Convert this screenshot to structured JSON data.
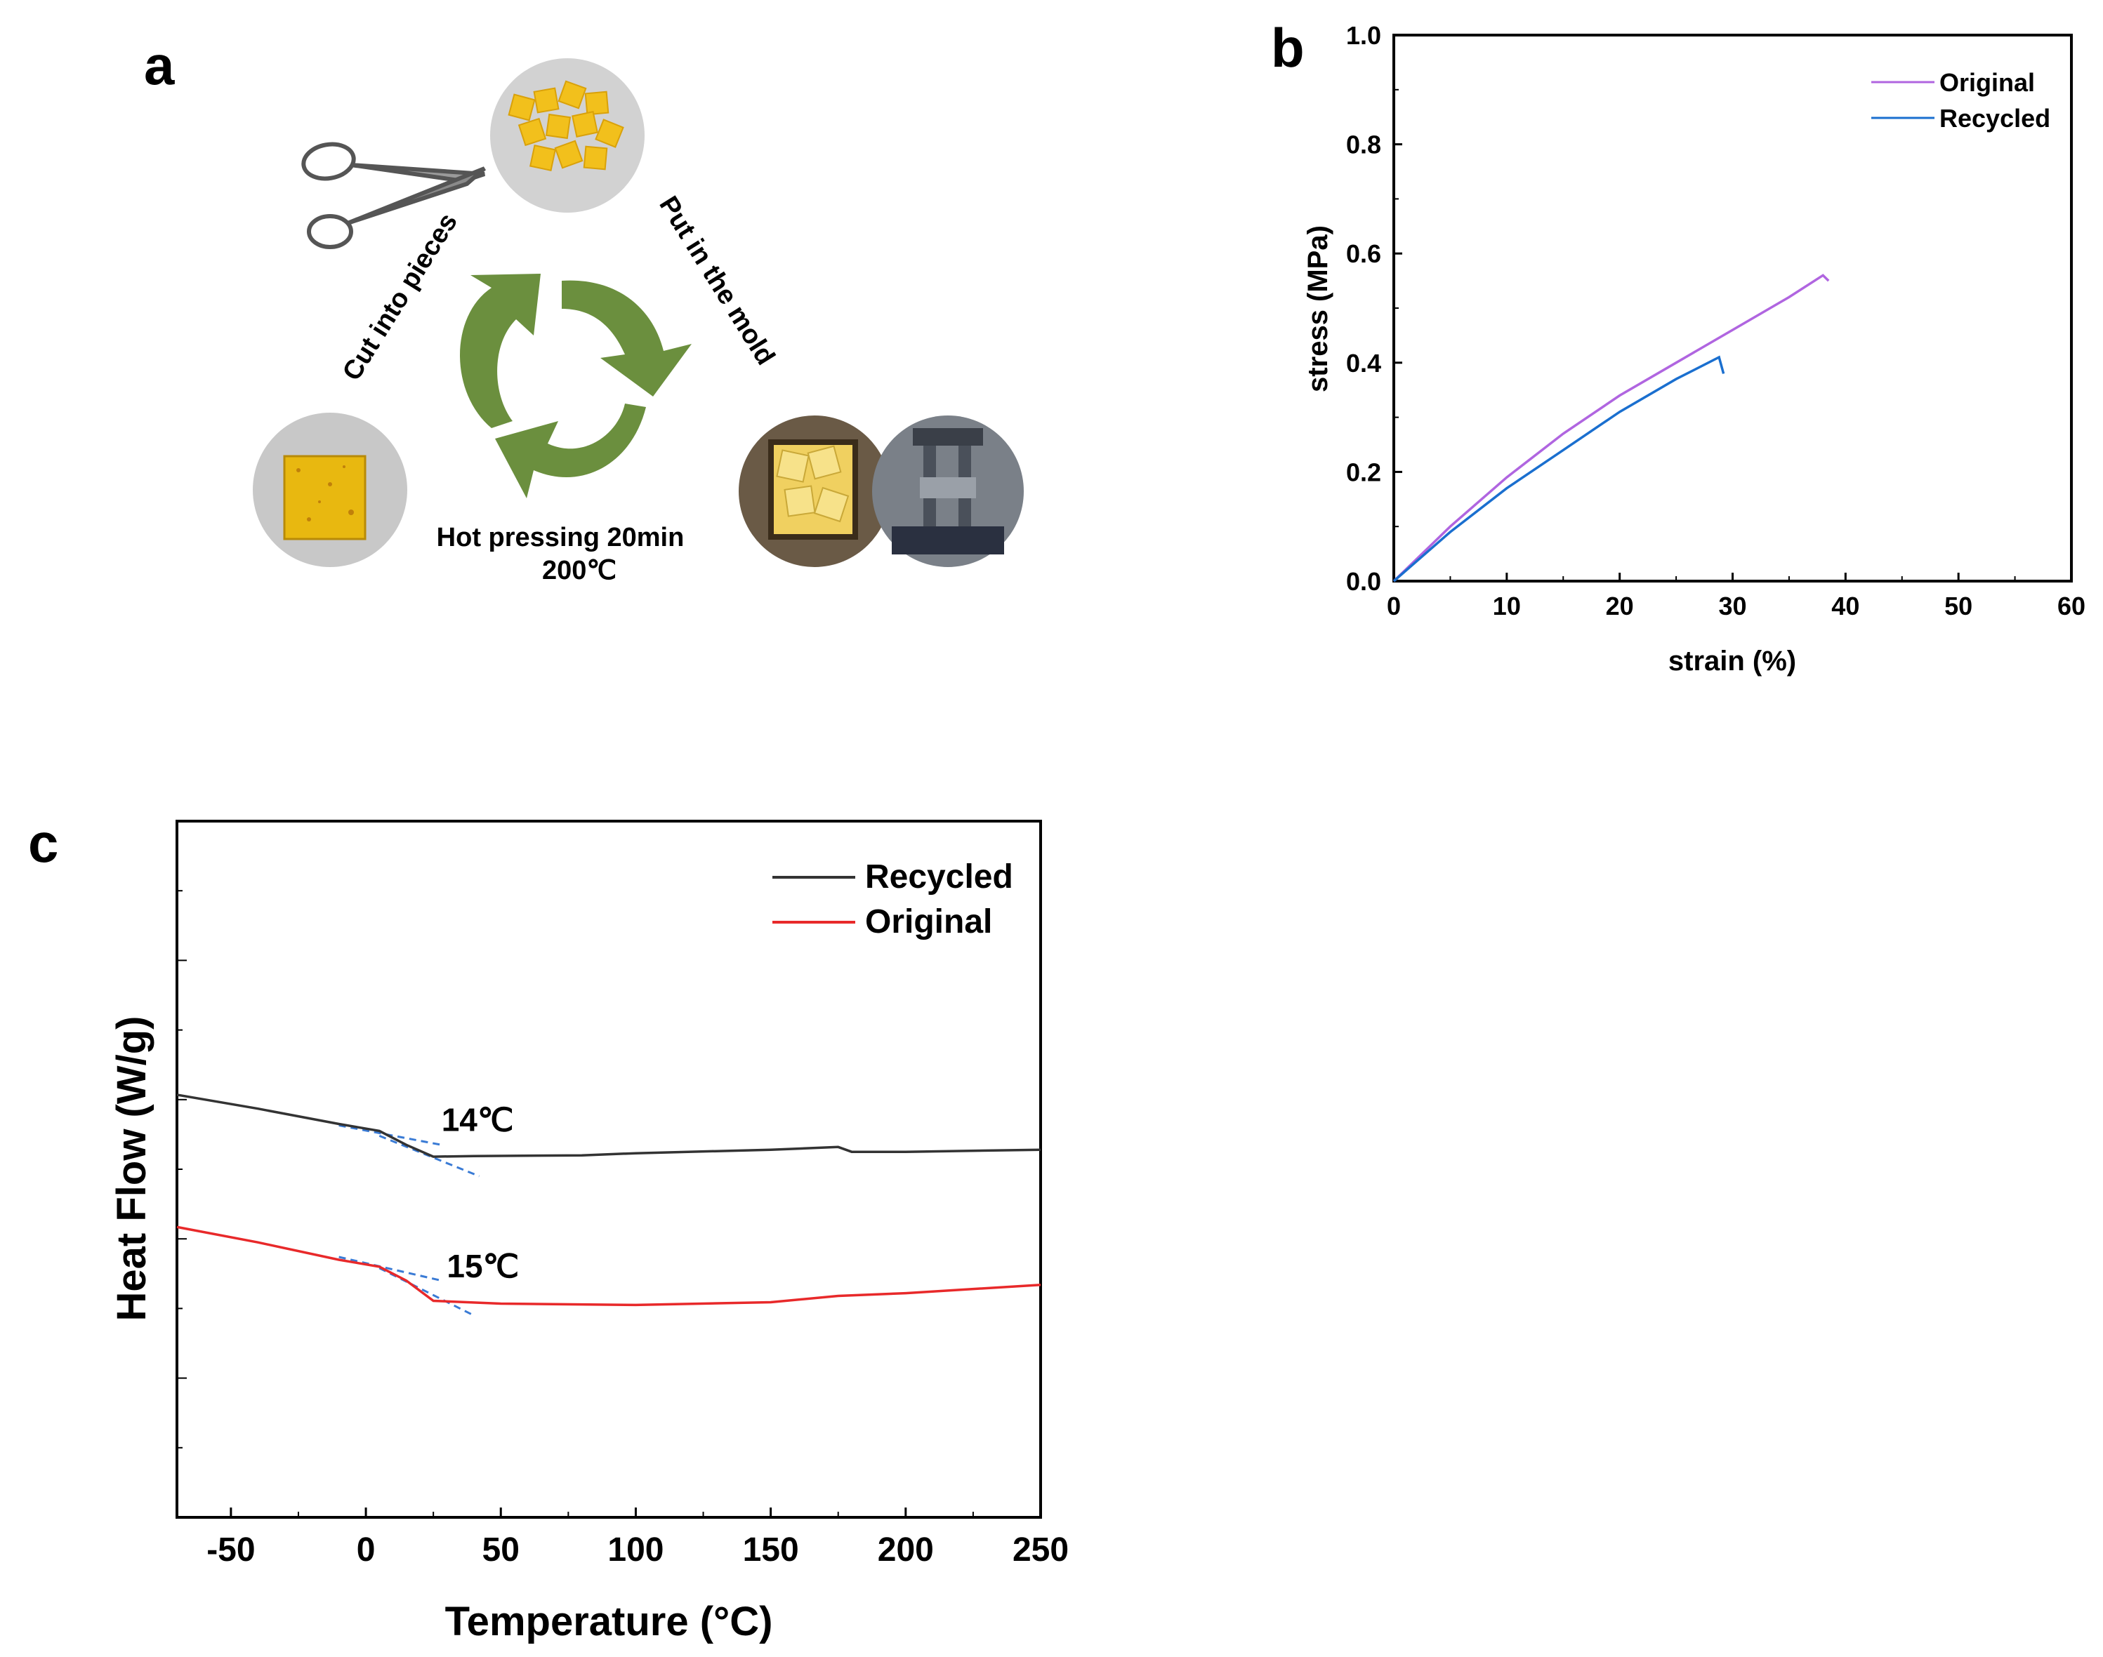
{
  "panel_a": {
    "letter": "a",
    "steps": {
      "cut": "Cut into pieces",
      "mold": "Put in the mold",
      "press_line1": "Hot pressing 20min",
      "press_line2": "200℃"
    },
    "colors": {
      "arrow": "#6b8f3e",
      "yellow": "#f3c21a",
      "photo_bg": "#c9c9c9"
    },
    "icons": [
      "scissors-icon",
      "recycle-arrows-icon"
    ]
  },
  "chart_data": [
    {
      "panel": "b",
      "type": "line",
      "xlabel": "strain (%)",
      "ylabel": "stress (MPa)",
      "xlim": [
        0,
        60
      ],
      "ylim": [
        0,
        1.0
      ],
      "xticks": [
        "0",
        "10",
        "20",
        "30",
        "40",
        "50",
        "60"
      ],
      "yticks": [
        "0.0",
        "0.2",
        "0.4",
        "0.6",
        "0.8",
        "1.0"
      ],
      "legend_position": "top-right",
      "series": [
        {
          "name": "Original",
          "color": "#b065e0",
          "points": [
            [
              0,
              0
            ],
            [
              5,
              0.1
            ],
            [
              10,
              0.19
            ],
            [
              15,
              0.27
            ],
            [
              20,
              0.34
            ],
            [
              25,
              0.4
            ],
            [
              30,
              0.46
            ],
            [
              35,
              0.52
            ],
            [
              38,
              0.56
            ],
            [
              38.5,
              0.55
            ]
          ]
        },
        {
          "name": "Recycled",
          "color": "#1a6fcf",
          "points": [
            [
              0,
              0
            ],
            [
              5,
              0.09
            ],
            [
              10,
              0.17
            ],
            [
              15,
              0.24
            ],
            [
              20,
              0.31
            ],
            [
              25,
              0.37
            ],
            [
              28.8,
              0.41
            ],
            [
              29.2,
              0.38
            ]
          ]
        }
      ]
    },
    {
      "panel": "c",
      "type": "line",
      "xlabel": "Temperature (°C)",
      "ylabel": "Heat Flow (W/g)",
      "xlim": [
        -70,
        250
      ],
      "ylim": [
        0,
        1
      ],
      "xticks": [
        "-50",
        "0",
        "50",
        "100",
        "150",
        "200",
        "250"
      ],
      "y_tick_labels_shown": false,
      "legend_position": "top-right",
      "series": [
        {
          "name": "Recycled",
          "color": "#333333",
          "points": [
            [
              -70,
              0.607
            ],
            [
              -40,
              0.587
            ],
            [
              -10,
              0.565
            ],
            [
              5,
              0.555
            ],
            [
              15,
              0.535
            ],
            [
              25,
              0.518
            ],
            [
              40,
              0.519
            ],
            [
              80,
              0.52
            ],
            [
              100,
              0.523
            ],
            [
              150,
              0.528
            ],
            [
              175,
              0.532
            ],
            [
              180,
              0.525
            ],
            [
              200,
              0.525
            ],
            [
              250,
              0.528
            ]
          ]
        },
        {
          "name": "Original",
          "color": "#e8292a",
          "points": [
            [
              -70,
              0.417
            ],
            [
              -40,
              0.395
            ],
            [
              -10,
              0.37
            ],
            [
              5,
              0.36
            ],
            [
              15,
              0.34
            ],
            [
              25,
              0.311
            ],
            [
              50,
              0.307
            ],
            [
              100,
              0.305
            ],
            [
              150,
              0.309
            ],
            [
              175,
              0.318
            ],
            [
              200,
              0.322
            ],
            [
              250,
              0.334
            ]
          ]
        }
      ],
      "tangent_color": "#3a7bd5",
      "annotations": [
        {
          "text": "14℃",
          "x": 28,
          "y": 0.555
        },
        {
          "text": "15℃",
          "x": 30,
          "y": 0.345
        }
      ]
    }
  ]
}
